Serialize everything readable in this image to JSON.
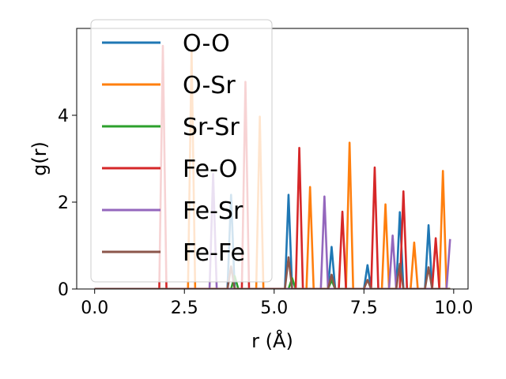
{
  "chart_data": {
    "type": "line",
    "title": "",
    "xlabel": "r (Å)",
    "ylabel": "g(r)",
    "xlim": [
      -0.5,
      10.4
    ],
    "ylim": [
      0,
      6.0
    ],
    "xticks": [
      0.0,
      2.5,
      5.0,
      7.5,
      10.0
    ],
    "xtick_labels": [
      "0.0",
      "2.5",
      "5.0",
      "7.5",
      "10.0"
    ],
    "yticks": [
      0,
      2,
      4
    ],
    "ytick_labels": [
      "0",
      "2",
      "4"
    ],
    "grid": false,
    "legend": "top-left",
    "bin_width": 0.1,
    "x_start": 0.0,
    "x_end": 9.9,
    "series": [
      {
        "name": "O-O",
        "color": "#1f77b4",
        "peaks": [
          [
            3.8,
            2.17
          ],
          [
            5.4,
            2.17
          ],
          [
            6.6,
            0.97
          ],
          [
            7.6,
            0.55
          ],
          [
            8.5,
            1.77
          ],
          [
            9.3,
            1.47
          ]
        ]
      },
      {
        "name": "O-Sr",
        "color": "#ff7f0e",
        "peaks": [
          [
            2.7,
            5.5
          ],
          [
            4.6,
            3.97
          ],
          [
            6.0,
            2.35
          ],
          [
            7.1,
            3.37
          ],
          [
            8.1,
            1.95
          ],
          [
            8.9,
            1.07
          ],
          [
            9.7,
            2.72
          ]
        ]
      },
      {
        "name": "Sr-Sr",
        "color": "#2ca02c",
        "peaks": [
          [
            3.9,
            0.3
          ],
          [
            5.5,
            0.25
          ],
          [
            6.6,
            0.2
          ]
        ]
      },
      {
        "name": "Fe-O",
        "color": "#d62728",
        "peaks": [
          [
            1.9,
            5.6
          ],
          [
            4.2,
            4.77
          ],
          [
            5.7,
            3.25
          ],
          [
            6.9,
            1.78
          ],
          [
            7.8,
            2.8
          ],
          [
            8.6,
            2.25
          ],
          [
            9.5,
            1.17
          ]
        ]
      },
      {
        "name": "Fe-Sr",
        "color": "#9467bd",
        "peaks": [
          [
            3.3,
            2.65
          ],
          [
            6.4,
            2.13
          ],
          [
            8.3,
            1.23
          ],
          [
            9.9,
            1.15
          ]
        ]
      },
      {
        "name": "Fe-Fe",
        "color": "#8c564b",
        "peaks": [
          [
            3.8,
            0.52
          ],
          [
            5.4,
            0.73
          ],
          [
            6.6,
            0.33
          ],
          [
            7.6,
            0.21
          ],
          [
            8.5,
            0.58
          ],
          [
            9.3,
            0.5
          ]
        ]
      }
    ]
  }
}
